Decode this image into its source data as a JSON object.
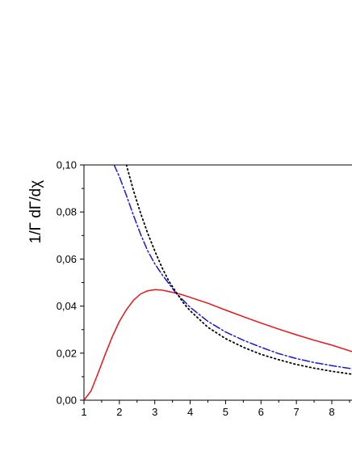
{
  "chart_data": {
    "type": "line",
    "title": "",
    "xlabel": "",
    "ylabel": "1/Γ dΓ/dχ",
    "xlim": [
      1,
      8.6
    ],
    "ylim": [
      0.0,
      0.1
    ],
    "x_ticks": [
      1,
      2,
      3,
      4,
      5,
      6,
      7,
      8
    ],
    "x_tick_labels": [
      "1",
      "2",
      "3",
      "4",
      "5",
      "6",
      "7",
      "8"
    ],
    "y_ticks": [
      0.0,
      0.02,
      0.04,
      0.06,
      0.08,
      0.1
    ],
    "y_tick_labels": [
      "0,00",
      "0,02",
      "0,04",
      "0,06",
      "0,08",
      "0,10"
    ],
    "grid": false,
    "legend": "none",
    "series": [
      {
        "style": "solid",
        "color": "#e8141b",
        "x": [
          1.0,
          1.2,
          1.4,
          1.6,
          1.8,
          2.0,
          2.2,
          2.4,
          2.6,
          2.8,
          3.0,
          3.2,
          3.4,
          3.6,
          3.8,
          4.0,
          4.5,
          5.0,
          5.5,
          6.0,
          6.5,
          7.0,
          7.5,
          8.0,
          8.6
        ],
        "y": [
          0.0,
          0.004,
          0.0115,
          0.0195,
          0.027,
          0.0335,
          0.0385,
          0.0425,
          0.0452,
          0.0465,
          0.047,
          0.0468,
          0.0462,
          0.0455,
          0.0447,
          0.0437,
          0.0412,
          0.0383,
          0.0355,
          0.0328,
          0.0302,
          0.0278,
          0.0255,
          0.0234,
          0.0205
        ]
      },
      {
        "style": "dash-dot",
        "color": "#1a1ad4",
        "x": [
          1.85,
          2.0,
          2.2,
          2.4,
          2.6,
          2.8,
          3.0,
          3.2,
          3.4,
          3.6,
          3.8,
          4.0,
          4.5,
          5.0,
          5.5,
          6.0,
          6.5,
          7.0,
          7.5,
          8.0,
          8.6
        ],
        "y": [
          0.1,
          0.095,
          0.087,
          0.0785,
          0.0705,
          0.0635,
          0.058,
          0.0535,
          0.0495,
          0.0455,
          0.0425,
          0.0395,
          0.0335,
          0.029,
          0.0255,
          0.0225,
          0.0198,
          0.0177,
          0.016,
          0.0147,
          0.0133
        ]
      },
      {
        "style": "dotted",
        "color": "#000000",
        "x": [
          2.2,
          2.4,
          2.6,
          2.8,
          3.0,
          3.2,
          3.4,
          3.6,
          3.8,
          4.0,
          4.5,
          5.0,
          5.5,
          6.0,
          6.5,
          7.0,
          7.5,
          8.0,
          8.6
        ],
        "y": [
          0.1,
          0.089,
          0.0795,
          0.071,
          0.0635,
          0.0565,
          0.0505,
          0.046,
          0.0415,
          0.038,
          0.031,
          0.0262,
          0.0225,
          0.0195,
          0.0172,
          0.0152,
          0.0136,
          0.0123,
          0.011
        ]
      }
    ]
  }
}
